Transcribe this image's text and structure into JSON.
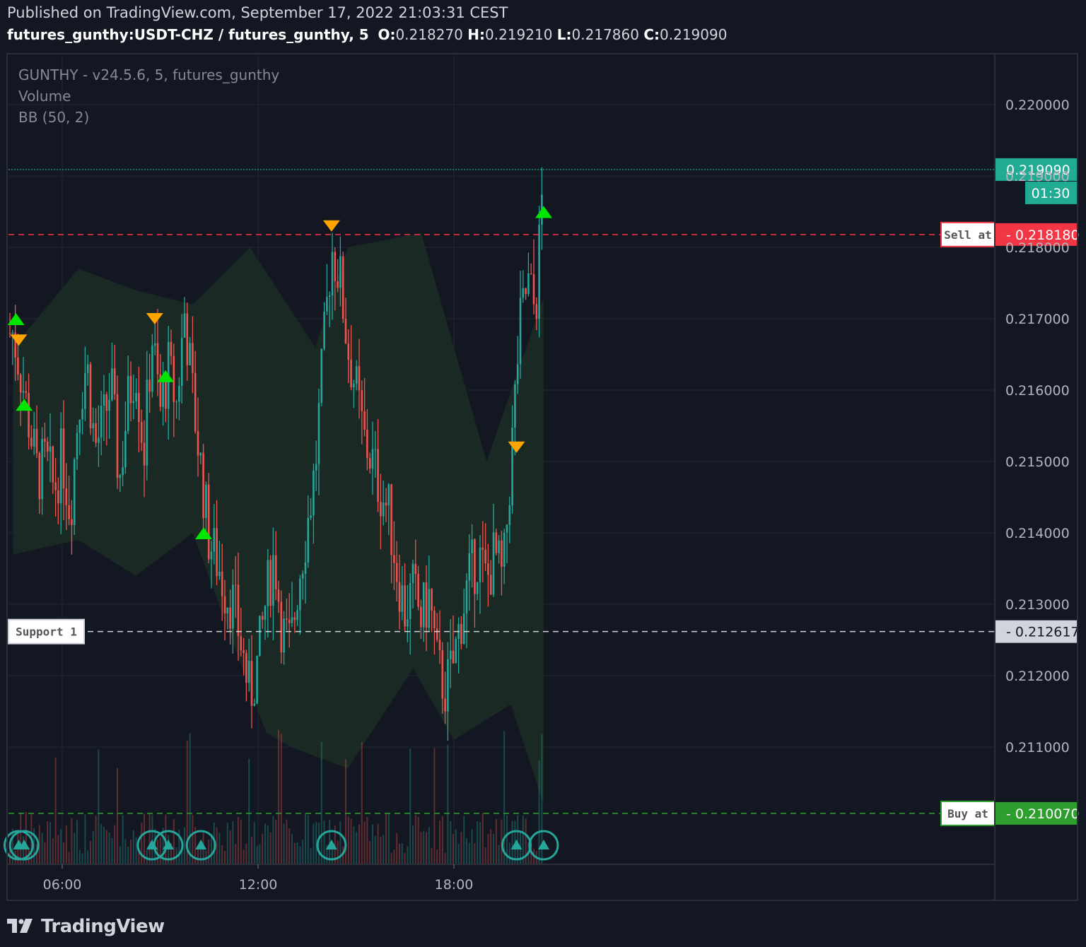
{
  "header": {
    "published": "Published on TradingView.com, September 17, 2022 21:03:31 CEST",
    "symbol": "futures_gunthy:USDT-CHZ / futures_gunthy, 5",
    "o_label": "O:",
    "o_value": "0.218270",
    "h_label": "H:",
    "h_value": "0.219210",
    "l_label": "L:",
    "l_value": "0.217860",
    "c_label": "C:",
    "c_value": "0.219090"
  },
  "legend": {
    "indicator1": "GUNTHY - v24.5.6, 5, futures_gunthy",
    "indicator2": "Volume",
    "indicator3": "BB (50, 2)"
  },
  "footer": {
    "brand": "TradingView",
    "logo_icon": "tradingview-logo-icon"
  },
  "colors": {
    "background": "#131722",
    "up": "#26a69a",
    "down": "#ef5350",
    "buy_signal": "#00e600",
    "sell_signal": "#ffa500",
    "sell_line": "#f23645",
    "buy_line": "#2e9e2e",
    "last_price": "#22ab94",
    "band_fill": "#1c2b23"
  },
  "chart_data": {
    "type": "candlestick",
    "x_ticks": [
      "06:00",
      "12:00",
      "18:00"
    ],
    "y_ticks": [
      "0.220000",
      "0.219000",
      "0.218000",
      "0.217000",
      "0.216000",
      "0.215000",
      "0.214000",
      "0.213000",
      "0.212000",
      "0.211000"
    ],
    "ylim": [
      0.2095,
      0.2209
    ],
    "last_price": {
      "label": "0.219090",
      "value": 0.21909,
      "countdown": "01:30"
    },
    "price_lines": [
      {
        "name": "Sell at",
        "label": "0.218180",
        "value": 0.21818,
        "style": "dashed",
        "color": "#f23645"
      },
      {
        "name": "Support 1",
        "label": "0.212617",
        "value": 0.212617,
        "style": "dashed",
        "color": "#d1d4dc"
      },
      {
        "name": "Buy at",
        "label": "0.210070",
        "value": 0.21007,
        "style": "dashed",
        "color": "#2e9e2e"
      }
    ],
    "price_path": [
      [
        "04:30",
        0.2168
      ],
      [
        "04:45",
        0.2162
      ],
      [
        "05:00",
        0.2155
      ],
      [
        "05:15",
        0.2148
      ],
      [
        "05:30",
        0.215
      ],
      [
        "05:45",
        0.2146
      ],
      [
        "06:00",
        0.2151
      ],
      [
        "06:15",
        0.2143
      ],
      [
        "06:30",
        0.2158
      ],
      [
        "06:45",
        0.2164
      ],
      [
        "07:00",
        0.2152
      ],
      [
        "07:15",
        0.2155
      ],
      [
        "07:30",
        0.2161
      ],
      [
        "07:45",
        0.2147
      ],
      [
        "08:00",
        0.2158
      ],
      [
        "08:15",
        0.2164
      ],
      [
        "08:30",
        0.2151
      ],
      [
        "08:45",
        0.2168
      ],
      [
        "09:00",
        0.2157
      ],
      [
        "09:15",
        0.2163
      ],
      [
        "09:30",
        0.2158
      ],
      [
        "09:45",
        0.2171
      ],
      [
        "10:00",
        0.2159
      ],
      [
        "10:15",
        0.2149
      ],
      [
        "10:30",
        0.2139
      ],
      [
        "10:45",
        0.2136
      ],
      [
        "11:00",
        0.2132
      ],
      [
        "11:15",
        0.213
      ],
      [
        "11:30",
        0.2124
      ],
      [
        "11:45",
        0.2117
      ],
      [
        "12:00",
        0.2122
      ],
      [
        "12:15",
        0.2131
      ],
      [
        "12:30",
        0.2137
      ],
      [
        "12:45",
        0.2126
      ],
      [
        "13:00",
        0.2124
      ],
      [
        "13:15",
        0.2134
      ],
      [
        "13:30",
        0.2141
      ],
      [
        "13:45",
        0.2149
      ],
      [
        "14:00",
        0.2165
      ],
      [
        "14:15",
        0.218
      ],
      [
        "14:30",
        0.2176
      ],
      [
        "14:45",
        0.2166
      ],
      [
        "15:00",
        0.216
      ],
      [
        "15:15",
        0.2153
      ],
      [
        "15:30",
        0.215
      ],
      [
        "15:45",
        0.2146
      ],
      [
        "16:00",
        0.2143
      ],
      [
        "16:15",
        0.2135
      ],
      [
        "16:30",
        0.2129
      ],
      [
        "16:45",
        0.2132
      ],
      [
        "17:00",
        0.2128
      ],
      [
        "17:15",
        0.2131
      ],
      [
        "17:30",
        0.2121
      ],
      [
        "17:45",
        0.2118
      ],
      [
        "18:00",
        0.2122
      ],
      [
        "18:15",
        0.2129
      ],
      [
        "18:30",
        0.2134
      ],
      [
        "18:45",
        0.2137
      ],
      [
        "19:00",
        0.2133
      ],
      [
        "19:15",
        0.2137
      ],
      [
        "19:30",
        0.2133
      ],
      [
        "19:45",
        0.215
      ],
      [
        "20:00",
        0.2168
      ],
      [
        "20:15",
        0.2175
      ],
      [
        "20:30",
        0.2171
      ],
      [
        "20:45",
        0.2191
      ]
    ],
    "bollinger_bands": {
      "period": 50,
      "stdev": 2,
      "upper": [
        [
          0.2166,
          "04:30"
        ],
        [
          0.2177,
          "06:30"
        ],
        [
          0.2174,
          "08:15"
        ],
        [
          0.2172,
          "10:00"
        ],
        [
          0.218,
          "11:45"
        ],
        [
          0.2166,
          "13:45"
        ],
        [
          0.218,
          "14:45"
        ],
        [
          0.2182,
          "17:00"
        ],
        [
          0.215,
          "19:00"
        ],
        [
          0.2173,
          "20:45"
        ]
      ],
      "lower": [
        [
          0.2137,
          "04:30"
        ],
        [
          0.2139,
          "06:30"
        ],
        [
          0.2134,
          "08:15"
        ],
        [
          0.214,
          "10:00"
        ],
        [
          0.2112,
          "12:15"
        ],
        [
          0.211,
          "13:00"
        ],
        [
          0.2107,
          "14:45"
        ],
        [
          0.2121,
          "16:45"
        ],
        [
          0.2111,
          "18:00"
        ],
        [
          0.2116,
          "19:45"
        ],
        [
          0.2102,
          "20:45"
        ]
      ]
    },
    "signals": [
      {
        "time": "04:35",
        "price": 0.217,
        "type": "buy"
      },
      {
        "time": "04:40",
        "price": 0.2167,
        "type": "sell"
      },
      {
        "time": "04:50",
        "price": 0.2158,
        "type": "buy"
      },
      {
        "time": "08:50",
        "price": 0.217,
        "type": "sell"
      },
      {
        "time": "09:10",
        "price": 0.2162,
        "type": "buy"
      },
      {
        "time": "10:20",
        "price": 0.214,
        "type": "buy"
      },
      {
        "time": "14:15",
        "price": 0.2183,
        "type": "sell"
      },
      {
        "time": "19:55",
        "price": 0.2152,
        "type": "sell"
      },
      {
        "time": "20:45",
        "price": 0.2185,
        "type": "buy"
      }
    ],
    "volume_markers": [
      "04:40",
      "04:50",
      "08:45",
      "09:15",
      "10:15",
      "14:15",
      "19:55",
      "20:45"
    ]
  }
}
